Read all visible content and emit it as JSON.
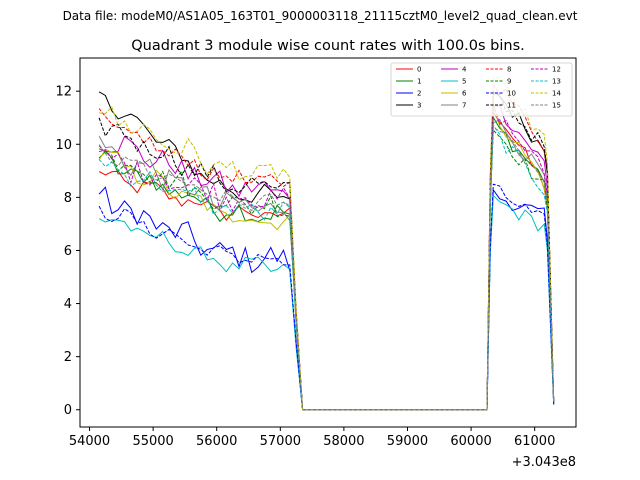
{
  "chart_data": {
    "type": "line",
    "suptitle": "Data file: modeM0/AS1A05_163T01_9000003118_21115cztM0_level2_quad_clean.evt",
    "title": "Quadrant 3 module wise count rates with 100.0s bins.",
    "xlabel": "",
    "ylabel": "",
    "x_offset_label": "+3.043e8",
    "xlim": [
      53850,
      61650
    ],
    "ylim": [
      -0.65,
      13.25
    ],
    "x_ticks": [
      54000,
      55000,
      56000,
      57000,
      58000,
      59000,
      60000,
      61000
    ],
    "x_tick_labels": [
      "54000",
      "55000",
      "56000",
      "57000",
      "58000",
      "59000",
      "60000",
      "61000"
    ],
    "y_ticks": [
      0,
      2,
      4,
      6,
      8,
      10,
      12
    ],
    "y_tick_labels": [
      "0",
      "2",
      "4",
      "6",
      "8",
      "10",
      "12"
    ],
    "legend_position": "upper-right",
    "legend_columns": 4,
    "segments": [
      {
        "x_start": 54150,
        "x_end": 57150
      },
      {
        "x_start": 60350,
        "x_end": 61150
      }
    ],
    "gap_points": [
      [
        57250,
        "drop"
      ],
      [
        57350,
        0
      ],
      [
        60250,
        0
      ],
      [
        60300,
        "rise"
      ]
    ],
    "final_x": 61300,
    "series": [
      {
        "name": "0",
        "color": "#ff0000",
        "dash": "solid",
        "start": 8.9,
        "end": 7.3,
        "drop_value": 3.2,
        "rise_value": 7.5,
        "peak": 11.4,
        "peak_end": 8.5,
        "final": 0.3
      },
      {
        "name": "1",
        "color": "#008000",
        "dash": "solid",
        "start": 9.4,
        "end": 7.3,
        "drop_value": 3.3,
        "rise_value": 7.5,
        "peak": 10.8,
        "peak_end": 8.7,
        "final": 0.3
      },
      {
        "name": "2",
        "color": "#0000ff",
        "dash": "solid",
        "start": 8.0,
        "end": 5.6,
        "drop_value": 2.5,
        "rise_value": 6.0,
        "peak": 8.1,
        "peak_end": 7.3,
        "final": 0.2
      },
      {
        "name": "3",
        "color": "#000000",
        "dash": "solid",
        "start": 11.9,
        "end": 7.9,
        "drop_value": 3.6,
        "rise_value": 8.5,
        "peak": 12.1,
        "peak_end": 9.8,
        "final": 0.3
      },
      {
        "name": "4",
        "color": "#bf00bf",
        "dash": "solid",
        "start": 10.3,
        "end": 8.2,
        "drop_value": 3.6,
        "rise_value": 8.3,
        "peak": 11.6,
        "peak_end": 9.3,
        "final": 0.3
      },
      {
        "name": "5",
        "color": "#00bfbf",
        "dash": "solid",
        "start": 7.3,
        "end": 5.3,
        "drop_value": 2.3,
        "rise_value": 5.8,
        "peak": 7.9,
        "peak_end": 6.9,
        "final": 0.2
      },
      {
        "name": "6",
        "color": "#bfbf00",
        "dash": "solid",
        "start": 9.6,
        "end": 7.1,
        "drop_value": 3.2,
        "rise_value": 7.4,
        "peak": 11.2,
        "peak_end": 8.6,
        "final": 0.3
      },
      {
        "name": "7",
        "color": "#808080",
        "dash": "solid",
        "start": 9.9,
        "end": 7.5,
        "drop_value": 3.3,
        "rise_value": 7.7,
        "peak": 11.0,
        "peak_end": 8.8,
        "final": 0.3
      },
      {
        "name": "8",
        "color": "#ff0000",
        "dash": "dashed",
        "start": 10.9,
        "end": 8.5,
        "drop_value": 3.7,
        "rise_value": 8.7,
        "peak": 12.5,
        "peak_end": 10.0,
        "final": 0.3
      },
      {
        "name": "9",
        "color": "#008000",
        "dash": "dashed",
        "start": 9.8,
        "end": 7.6,
        "drop_value": 3.3,
        "rise_value": 7.8,
        "peak": 10.6,
        "peak_end": 8.4,
        "final": 0.3
      },
      {
        "name": "10",
        "color": "#0000ff",
        "dash": "dashed",
        "start": 7.6,
        "end": 5.6,
        "drop_value": 2.5,
        "rise_value": 6.1,
        "peak": 8.3,
        "peak_end": 7.1,
        "final": 0.2
      },
      {
        "name": "11",
        "color": "#000000",
        "dash": "dashed",
        "start": 10.8,
        "end": 8.3,
        "drop_value": 3.6,
        "rise_value": 8.6,
        "peak": 12.0,
        "peak_end": 9.9,
        "final": 0.3
      },
      {
        "name": "12",
        "color": "#bf00bf",
        "dash": "dashed",
        "start": 9.5,
        "end": 7.9,
        "drop_value": 3.4,
        "rise_value": 8.0,
        "peak": 11.3,
        "peak_end": 9.0,
        "final": 0.3
      },
      {
        "name": "13",
        "color": "#00bfbf",
        "dash": "dashed",
        "start": 9.3,
        "end": 7.4,
        "drop_value": 3.2,
        "rise_value": 7.6,
        "peak": 10.5,
        "peak_end": 8.3,
        "final": 0.3
      },
      {
        "name": "14",
        "color": "#bfbf00",
        "dash": "dashed",
        "start": 11.3,
        "end": 8.8,
        "drop_value": 3.8,
        "rise_value": 8.9,
        "peak": 12.5,
        "peak_end": 10.2,
        "final": 0.3
      },
      {
        "name": "15",
        "color": "#808080",
        "dash": "dashed",
        "start": 9.7,
        "end": 7.7,
        "drop_value": 3.3,
        "rise_value": 7.9,
        "peak": 10.9,
        "peak_end": 8.7,
        "final": 0.3
      }
    ]
  }
}
